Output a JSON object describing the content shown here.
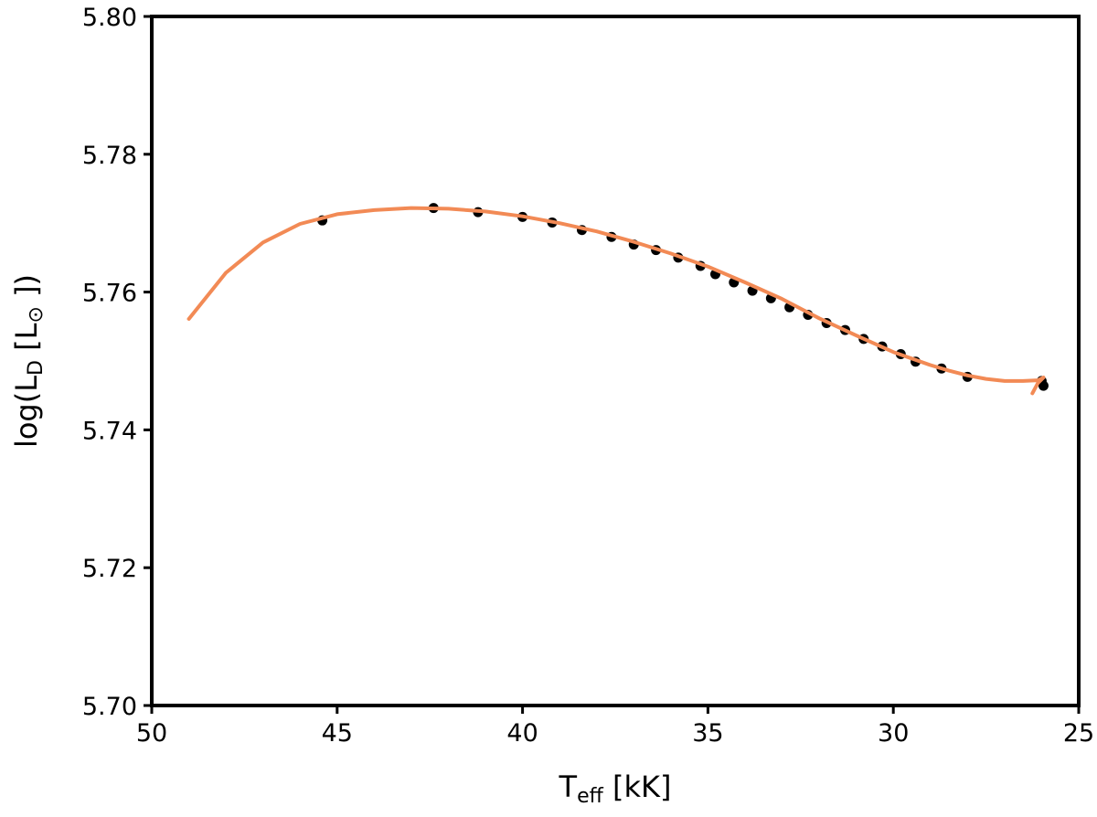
{
  "chart_data": {
    "type": "line",
    "title": "",
    "xlabel": {
      "main": "T",
      "sub": "eff",
      "rest": " [kK]"
    },
    "ylabel": {
      "pre": "log(L",
      "sub": "D",
      "mid": " [L",
      "sub2": "⊙",
      "post": " ])"
    },
    "xlim": [
      50,
      25
    ],
    "ylim": [
      5.7,
      5.8
    ],
    "x_reversed": true,
    "grid": false,
    "xticks": [
      {
        "value": 50,
        "label": "50"
      },
      {
        "value": 45,
        "label": "45"
      },
      {
        "value": 40,
        "label": "40"
      },
      {
        "value": 35,
        "label": "35"
      },
      {
        "value": 30,
        "label": "30"
      },
      {
        "value": 25,
        "label": "25"
      }
    ],
    "yticks": [
      {
        "value": 5.7,
        "label": "5.70"
      },
      {
        "value": 5.72,
        "label": "5.72"
      },
      {
        "value": 5.74,
        "label": "5.74"
      },
      {
        "value": 5.76,
        "label": "5.76"
      },
      {
        "value": 5.78,
        "label": "5.78"
      },
      {
        "value": 5.8,
        "label": "5.80"
      }
    ],
    "curve": {
      "color": "#f28a55",
      "x": [
        49.0,
        48.0,
        47.0,
        46.0,
        45.0,
        44.0,
        43.0,
        42.0,
        41.0,
        40.0,
        39.0,
        38.0,
        37.0,
        36.0,
        35.0,
        34.0,
        33.0,
        32.0,
        31.0,
        30.0,
        29.0,
        28.5,
        28.0,
        27.5,
        27.0,
        26.5,
        26.1,
        25.95,
        26.1,
        26.25
      ],
      "y": [
        5.7561,
        5.7628,
        5.7672,
        5.7699,
        5.7713,
        5.7719,
        5.7722,
        5.7721,
        5.7717,
        5.771,
        5.77,
        5.7688,
        5.7673,
        5.7656,
        5.7637,
        5.7614,
        5.759,
        5.7562,
        5.7537,
        5.7513,
        5.7494,
        5.7486,
        5.7479,
        5.7474,
        5.7471,
        5.7471,
        5.7472,
        5.7476,
        5.7468,
        5.7453
      ]
    },
    "points": {
      "color": "#000000",
      "x": [
        45.4,
        42.4,
        41.2,
        40.0,
        39.2,
        38.4,
        37.6,
        37.0,
        36.4,
        35.8,
        35.2,
        34.8,
        34.3,
        33.8,
        33.3,
        32.8,
        32.3,
        31.8,
        31.3,
        30.8,
        30.3,
        29.8,
        29.4,
        28.7,
        28.0,
        26.0,
        25.95
      ],
      "y": [
        5.7704,
        5.7722,
        5.7716,
        5.7709,
        5.7701,
        5.769,
        5.768,
        5.7669,
        5.7661,
        5.765,
        5.7638,
        5.7626,
        5.7614,
        5.7602,
        5.7591,
        5.7578,
        5.7567,
        5.7555,
        5.7545,
        5.7532,
        5.7521,
        5.751,
        5.7499,
        5.7489,
        5.7477,
        5.7471,
        5.7464
      ]
    }
  }
}
